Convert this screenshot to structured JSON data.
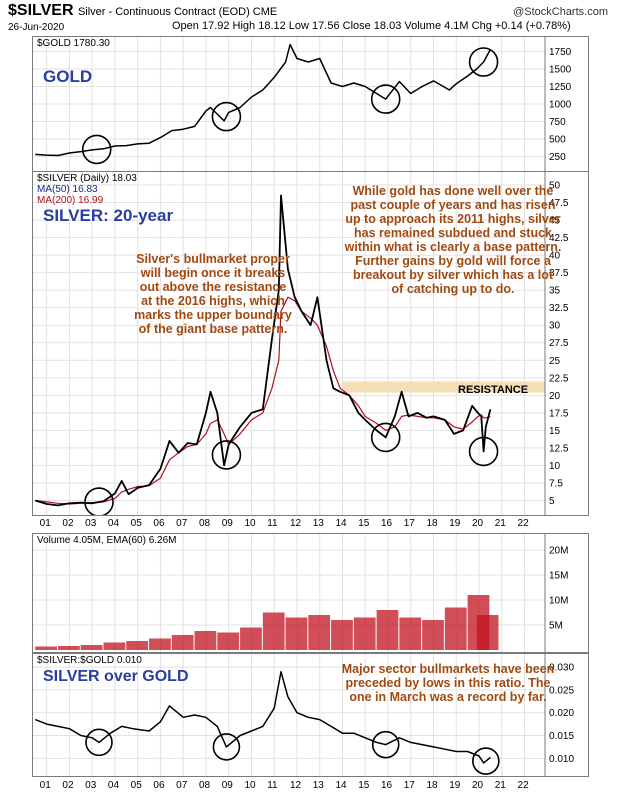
{
  "header": {
    "symbol": "$SILVER",
    "description": "Silver - Continuous Contract (EOD) CME",
    "brand": "@StockCharts.com",
    "date": "26-Jun-2020",
    "ohlc": "Open 17.92  High 18.12  Low 17.56  Close 18.03  Volume 4.1M  Chg +0.14 (+0.78%)"
  },
  "colors": {
    "price": "#000000",
    "ma50": "#1a2a8c",
    "ma200": "#b01020",
    "volume": "#c1121f",
    "annotation": "#a04a12",
    "label": "#2c3e9e",
    "resistance": "#f7dfb4"
  },
  "x_axis_labels": [
    "01",
    "02",
    "03",
    "04",
    "05",
    "06",
    "07",
    "08",
    "09",
    "10",
    "11",
    "12",
    "13",
    "14",
    "15",
    "16",
    "17",
    "18",
    "19",
    "20",
    "21",
    "22"
  ],
  "chart_data": [
    {
      "type": "line",
      "panel": "gold",
      "legend": "$GOLD 1780.30",
      "label": "GOLD",
      "yticks": [
        250,
        500,
        750,
        1000,
        1250,
        1500,
        1750
      ],
      "ylim": [
        100,
        1900
      ],
      "x": [
        2000.5,
        2001.0,
        2001.5,
        2002.0,
        2002.5,
        2003.0,
        2003.5,
        2004.0,
        2004.5,
        2005.0,
        2005.5,
        2006.0,
        2006.5,
        2007.0,
        2007.5,
        2008.0,
        2008.2,
        2008.8,
        2009.0,
        2009.5,
        2010.0,
        2010.5,
        2011.0,
        2011.5,
        2011.7,
        2012.0,
        2012.5,
        2013.0,
        2013.5,
        2014.0,
        2014.5,
        2015.0,
        2015.5,
        2015.9,
        2016.5,
        2017.0,
        2017.5,
        2018.0,
        2018.7,
        2019.0,
        2019.5,
        2019.9,
        2020.2,
        2020.5
      ],
      "values": [
        280,
        270,
        265,
        300,
        320,
        345,
        360,
        400,
        405,
        430,
        440,
        520,
        620,
        640,
        680,
        900,
        950,
        760,
        880,
        950,
        1100,
        1200,
        1380,
        1600,
        1850,
        1650,
        1600,
        1650,
        1300,
        1250,
        1300,
        1250,
        1150,
        1070,
        1320,
        1150,
        1250,
        1330,
        1200,
        1290,
        1400,
        1500,
        1600,
        1780
      ],
      "circles": [
        2003.2,
        2008.9,
        2015.9,
        2020.2
      ]
    },
    {
      "type": "line",
      "panel": "silver",
      "legend_symbol": "$SILVER (Daily) 18.03",
      "legend_ma50": "MA(50) 16.83",
      "legend_ma200": "MA(200) 16.99",
      "label": "SILVER: 20-year",
      "yticks": [
        5.0,
        7.5,
        10.0,
        12.5,
        15.0,
        17.5,
        20.0,
        22.5,
        25.0,
        27.5,
        30.0,
        32.5,
        35.0,
        37.5,
        40.0,
        42.5,
        45.0,
        47.5,
        50.0
      ],
      "ylim": [
        3.5,
        51
      ],
      "x": [
        2000.5,
        2001.0,
        2001.5,
        2002.0,
        2002.5,
        2003.0,
        2003.5,
        2004.0,
        2004.3,
        2004.6,
        2005.0,
        2005.5,
        2006.0,
        2006.4,
        2006.8,
        2007.2,
        2007.6,
        2008.0,
        2008.2,
        2008.5,
        2008.8,
        2009.0,
        2009.5,
        2010.0,
        2010.5,
        2010.9,
        2011.2,
        2011.3,
        2011.6,
        2011.9,
        2012.2,
        2012.6,
        2012.9,
        2013.3,
        2013.6,
        2013.9,
        2014.3,
        2014.7,
        2015.0,
        2015.5,
        2015.9,
        2016.3,
        2016.6,
        2016.9,
        2017.3,
        2017.7,
        2018.0,
        2018.5,
        2018.9,
        2019.3,
        2019.7,
        2019.95,
        2020.1,
        2020.2,
        2020.3,
        2020.5
      ],
      "values": [
        5.0,
        4.5,
        4.3,
        4.6,
        4.7,
        4.6,
        4.9,
        6.0,
        7.8,
        5.9,
        6.8,
        7.2,
        9.5,
        13.5,
        11.8,
        13.2,
        13.0,
        17.5,
        20.5,
        17.5,
        10.0,
        13.0,
        15.5,
        17.5,
        18.0,
        28.0,
        35.0,
        48.5,
        38.0,
        34.0,
        32.0,
        30.0,
        34.0,
        25.0,
        21.0,
        20.5,
        20.0,
        17.5,
        16.5,
        15.0,
        14.0,
        17.0,
        20.5,
        17.0,
        17.5,
        16.8,
        17.0,
        16.5,
        14.5,
        15.0,
        18.5,
        17.5,
        17.0,
        12.0,
        15.5,
        18.0
      ],
      "ma200_values": [
        5.0,
        4.8,
        4.6,
        4.5,
        4.6,
        4.7,
        4.8,
        5.3,
        6.2,
        6.6,
        7.0,
        7.1,
        8.2,
        10.8,
        11.8,
        12.7,
        13.0,
        14.5,
        16.0,
        16.5,
        14.5,
        13.0,
        14.5,
        16.5,
        17.5,
        21.0,
        25.0,
        32.0,
        34.0,
        33.5,
        32.0,
        31.0,
        30.0,
        27.0,
        23.5,
        21.0,
        20.0,
        18.5,
        17.0,
        16.0,
        15.0,
        15.5,
        17.0,
        17.2,
        17.0,
        16.8,
        16.8,
        16.5,
        15.5,
        15.2,
        16.2,
        17.0,
        17.2,
        16.8,
        16.8,
        17.0
      ],
      "circles": [
        2003.3,
        2008.9,
        2015.9,
        2020.2
      ],
      "resistance_label": "RESISTANCE",
      "resistance_band": [
        20.4,
        22.0
      ],
      "annotation_left": "Silver's bullmarket proper\nwill begin once it breaks\nout above the resistance\nat the 2016 highs, which\nmarks the upper boundary\nof the giant base pattern.",
      "annotation_right": "While gold has done well over the\npast couple of years and has risen\nup to approach its 2011 highs, silver\nhas remained subdued and stuck\nwithin what is clearly a base pattern.\nFurther gains by gold will force a\nbreakout by silver which has a lot\nof catching up to do."
    },
    {
      "type": "bar",
      "panel": "volume",
      "legend": "Volume 4.05M, EMA(60) 6.26M",
      "yticks_labels": [
        "5M",
        "10M",
        "15M",
        "20M"
      ],
      "yticks": [
        5,
        10,
        15,
        20
      ],
      "ylim": [
        0,
        22
      ],
      "x": [
        2001,
        2002,
        2003,
        2004,
        2005,
        2006,
        2007,
        2008,
        2009,
        2010,
        2011,
        2012,
        2013,
        2014,
        2015,
        2016,
        2017,
        2018,
        2019,
        2020,
        2020.4
      ],
      "values": [
        0.7,
        0.8,
        1.0,
        1.5,
        1.8,
        2.3,
        3.0,
        3.8,
        3.5,
        4.5,
        7.5,
        6.5,
        7.0,
        6.0,
        6.5,
        8.0,
        6.5,
        6.0,
        8.5,
        11.0,
        7.0
      ]
    },
    {
      "type": "line",
      "panel": "ratio",
      "legend": "$SILVER:$GOLD 0.010",
      "label": "SILVER over GOLD",
      "yticks": [
        0.01,
        0.015,
        0.02,
        0.025,
        0.03
      ],
      "ytick_labels": [
        "0.010",
        "0.015",
        "0.020",
        "0.025",
        "0.030"
      ],
      "ylim": [
        0.007,
        0.032
      ],
      "x": [
        2000.5,
        2001.0,
        2001.5,
        2002.0,
        2002.5,
        2003.0,
        2003.3,
        2003.8,
        2004.3,
        2004.8,
        2005.5,
        2006.0,
        2006.4,
        2007.0,
        2007.5,
        2008.0,
        2008.5,
        2008.9,
        2009.5,
        2010.0,
        2010.5,
        2011.0,
        2011.3,
        2011.6,
        2012.0,
        2012.5,
        2013.0,
        2013.5,
        2014.0,
        2014.5,
        2015.0,
        2015.5,
        2015.9,
        2016.5,
        2017.0,
        2017.5,
        2018.0,
        2018.5,
        2019.0,
        2019.5,
        2020.0,
        2020.2,
        2020.5
      ],
      "values": [
        0.0185,
        0.0175,
        0.017,
        0.0165,
        0.015,
        0.0145,
        0.0135,
        0.0155,
        0.017,
        0.0165,
        0.016,
        0.018,
        0.0215,
        0.019,
        0.0195,
        0.019,
        0.017,
        0.0125,
        0.015,
        0.016,
        0.017,
        0.021,
        0.029,
        0.0235,
        0.02,
        0.019,
        0.0185,
        0.017,
        0.0155,
        0.0155,
        0.0145,
        0.0135,
        0.013,
        0.0145,
        0.0135,
        0.013,
        0.0125,
        0.012,
        0.0115,
        0.0115,
        0.0105,
        0.009,
        0.0102
      ],
      "circles": [
        2003.3,
        2008.9,
        2015.9,
        2020.3
      ],
      "annotation": "Major sector bullmarkets have been\npreceded by lows in this ratio. The\none in March was a record by far."
    }
  ]
}
